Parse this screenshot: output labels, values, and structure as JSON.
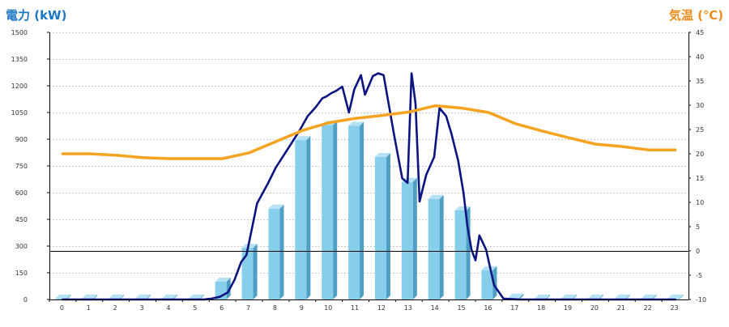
{
  "chart_data": {
    "type": "bar",
    "title": "",
    "categories": [
      "0",
      "1",
      "2",
      "3",
      "4",
      "5",
      "6",
      "7",
      "8",
      "9",
      "10",
      "11",
      "12",
      "13",
      "14",
      "15",
      "16",
      "17",
      "18",
      "19",
      "20",
      "21",
      "22",
      "23"
    ],
    "left_axis": {
      "label": "電力 (kW)",
      "ylim": [
        0,
        1500
      ],
      "ticks": [
        "0",
        "150",
        "300",
        "450",
        "600",
        "750",
        "900",
        "1050",
        "1200",
        "1350",
        "1500"
      ],
      "tick_values": [
        0,
        150,
        300,
        450,
        600,
        750,
        900,
        1050,
        1200,
        1350,
        1500
      ]
    },
    "right_axis": {
      "label": "気温 (℃)",
      "ylim": [
        -10,
        45
      ],
      "ticks": [
        "-10",
        "-5",
        "0",
        "5",
        "10",
        "15",
        "20",
        "25",
        "30",
        "35",
        "40",
        "45"
      ],
      "tick_values": [
        -10,
        -5,
        0,
        5,
        10,
        15,
        20,
        25,
        30,
        35,
        40,
        45
      ]
    },
    "grid": true,
    "legend": "none",
    "series": [
      {
        "type": "bar",
        "axis": "left",
        "values": [
          5,
          5,
          5,
          5,
          5,
          5,
          100,
          290,
          510,
          895,
          980,
          975,
          800,
          660,
          565,
          500,
          165,
          10,
          5,
          5,
          5,
          5,
          5,
          5
        ]
      },
      {
        "type": "line",
        "axis": "left",
        "x": [
          0,
          4.5,
          5.3,
          5.6,
          5.9,
          6.2,
          6.45,
          6.7,
          6.9,
          7.3,
          7.7,
          8,
          8.3,
          8.6,
          8.9,
          9.2,
          9.5,
          9.75,
          9.9,
          10.1,
          10.25,
          10.5,
          10.75,
          10.95,
          11.2,
          11.35,
          11.65,
          11.85,
          12.05,
          12.45,
          12.75,
          12.95,
          13.1,
          13.25,
          13.4,
          13.65,
          13.95,
          14.15,
          14.4,
          14.6,
          14.85,
          15.05,
          15.2,
          15.35,
          15.5,
          15.65,
          15.9,
          16.2,
          16.55,
          17.1,
          23
        ],
        "values": [
          0,
          0,
          0,
          5,
          15,
          40,
          110,
          210,
          250,
          540,
          650,
          740,
          810,
          880,
          950,
          1030,
          1080,
          1130,
          1140,
          1160,
          1170,
          1195,
          1050,
          1180,
          1260,
          1150,
          1255,
          1270,
          1260,
          920,
          680,
          655,
          1270,
          1100,
          550,
          700,
          800,
          1075,
          1030,
          930,
          780,
          600,
          410,
          280,
          220,
          360,
          280,
          80,
          5,
          0,
          0
        ]
      },
      {
        "type": "line",
        "axis": "right",
        "x": [
          0,
          1,
          2,
          3,
          4,
          5,
          6,
          7,
          8,
          9,
          10,
          11,
          12,
          13,
          14,
          15,
          16,
          17,
          18,
          19,
          20,
          21,
          22,
          23
        ],
        "values": [
          20,
          20,
          19.7,
          19.2,
          19,
          19,
          19,
          20.2,
          22.5,
          24.8,
          26.4,
          27.3,
          27.9,
          28.6,
          29.9,
          29.4,
          28.5,
          26.2,
          24.7,
          23.3,
          22,
          21.5,
          20.8,
          20.8
        ]
      }
    ],
    "colors": {
      "bar_face": "#87ceea",
      "bar_side": "#4f9fc5",
      "bar_top": "#b5e2f4",
      "power_line": "#0c1481",
      "temp_line": "#f5a320",
      "left_title": "#1b76c4",
      "right_title": "#f08c1e",
      "grid": "#c8c8c8",
      "zero_line": "#000000"
    }
  }
}
